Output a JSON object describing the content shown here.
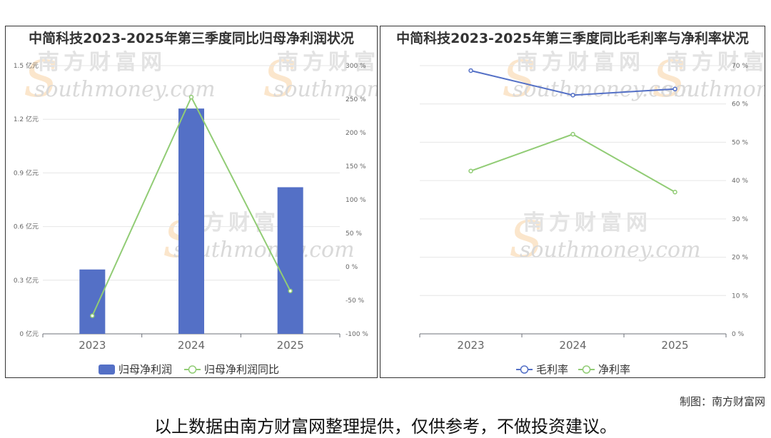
{
  "chart_data": [
    {
      "type": "bar",
      "title": "中简科技2023-2025年第三季度同比归母净利润状况",
      "categories": [
        "2023",
        "2024",
        "2025"
      ],
      "series": [
        {
          "name": "归母净利润",
          "type": "bar",
          "axis": "left",
          "color": "#5470c6",
          "values": [
            0.36,
            1.26,
            0.82
          ]
        },
        {
          "name": "归母净利润同比",
          "type": "line",
          "axis": "right",
          "color": "#91cc75",
          "values": [
            -73,
            253,
            -36
          ]
        }
      ],
      "y_left": {
        "ticks": [
          "0 亿元",
          "0.3 亿元",
          "0.6 亿元",
          "0.9 亿元",
          "1.2 亿元",
          "1.5 亿元"
        ],
        "ylim": [
          0,
          1.5
        ]
      },
      "y_right": {
        "ticks": [
          "-100 %",
          "-50 %",
          "0 %",
          "50 %",
          "100 %",
          "150 %",
          "200 %",
          "250 %",
          "300 %"
        ],
        "ylim": [
          -100,
          300
        ]
      },
      "legend_position": "bottom"
    },
    {
      "type": "line",
      "title": "中简科技2023-2025年第三季度同比毛利率与净利率状况",
      "categories": [
        "2023",
        "2024",
        "2025"
      ],
      "series": [
        {
          "name": "毛利率",
          "color": "#5470c6",
          "values": [
            68.7,
            62.3,
            63.9
          ]
        },
        {
          "name": "净利率",
          "color": "#91cc75",
          "values": [
            42.5,
            52.1,
            37.0
          ]
        }
      ],
      "y_right": {
        "ticks": [
          "0 %",
          "10 %",
          "20 %",
          "30 %",
          "40 %",
          "50 %",
          "60 %",
          "70 %"
        ],
        "ylim": [
          0,
          70
        ]
      },
      "legend_position": "bottom"
    }
  ],
  "watermark": {
    "cn": "南方财富网",
    "en": "southmoney.com"
  },
  "footer": {
    "source": "制图：南方财富网",
    "disclaimer": "以上数据由南方财富网整理提供，仅供参考，不做投资建议。"
  }
}
